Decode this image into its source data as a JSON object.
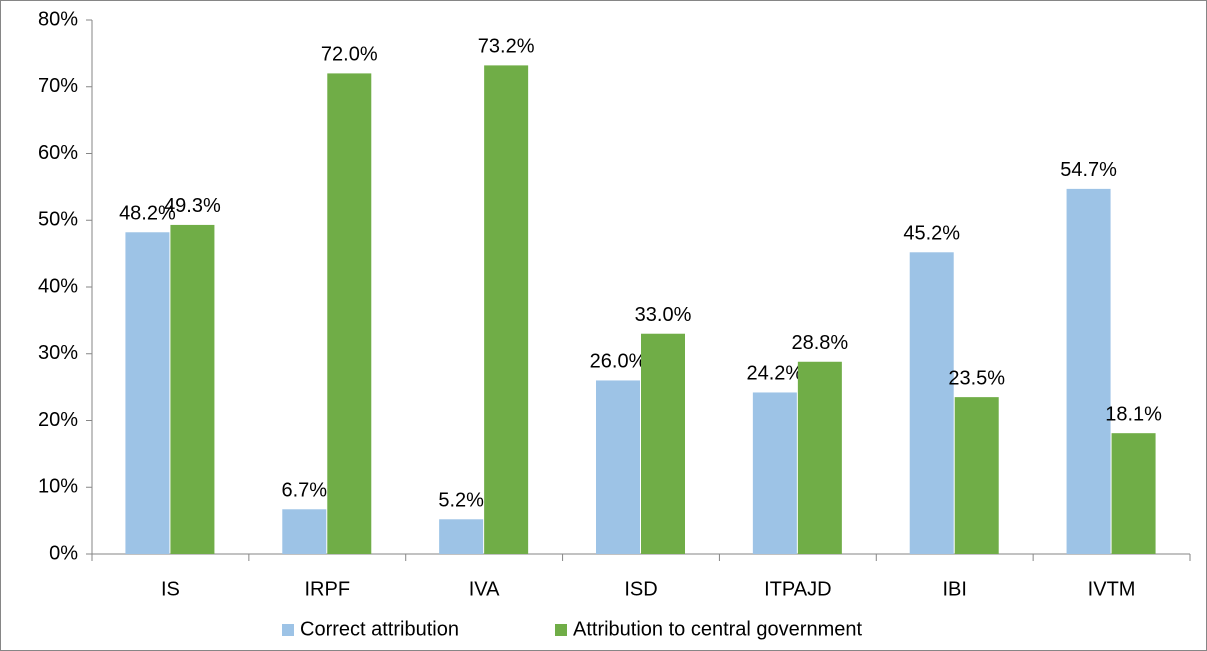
{
  "chart_data": {
    "type": "bar",
    "categories": [
      "IS",
      "IRPF",
      "IVA",
      "ISD",
      "ITPAJD",
      "IBI",
      "IVTM"
    ],
    "series": [
      {
        "name": "Correct attribution",
        "color": "#9dc3e6",
        "values": [
          48.2,
          6.7,
          5.2,
          26.0,
          24.2,
          45.2,
          54.7
        ],
        "value_labels": [
          "48.2%",
          "6.7%",
          "5.2%",
          "26.0%",
          "24.2%",
          "45.2%",
          "54.7%"
        ]
      },
      {
        "name": "Attribution to central government",
        "color": "#70ad47",
        "values": [
          49.3,
          72.0,
          73.2,
          33.0,
          28.8,
          23.5,
          18.1
        ],
        "value_labels": [
          "49.3%",
          "72.0%",
          "73.2%",
          "33.0%",
          "28.8%",
          "23.5%",
          "18.1%"
        ]
      }
    ],
    "ylim": [
      0,
      80
    ],
    "yticks": [
      {
        "value": 0,
        "label": "0%"
      },
      {
        "value": 10,
        "label": "10%"
      },
      {
        "value": 20,
        "label": "20%"
      },
      {
        "value": 30,
        "label": "30%"
      },
      {
        "value": 40,
        "label": "40%"
      },
      {
        "value": 50,
        "label": "50%"
      },
      {
        "value": 60,
        "label": "60%"
      },
      {
        "value": 70,
        "label": "70%"
      },
      {
        "value": 80,
        "label": "80%"
      }
    ],
    "grid": false,
    "legend": "bottom"
  }
}
